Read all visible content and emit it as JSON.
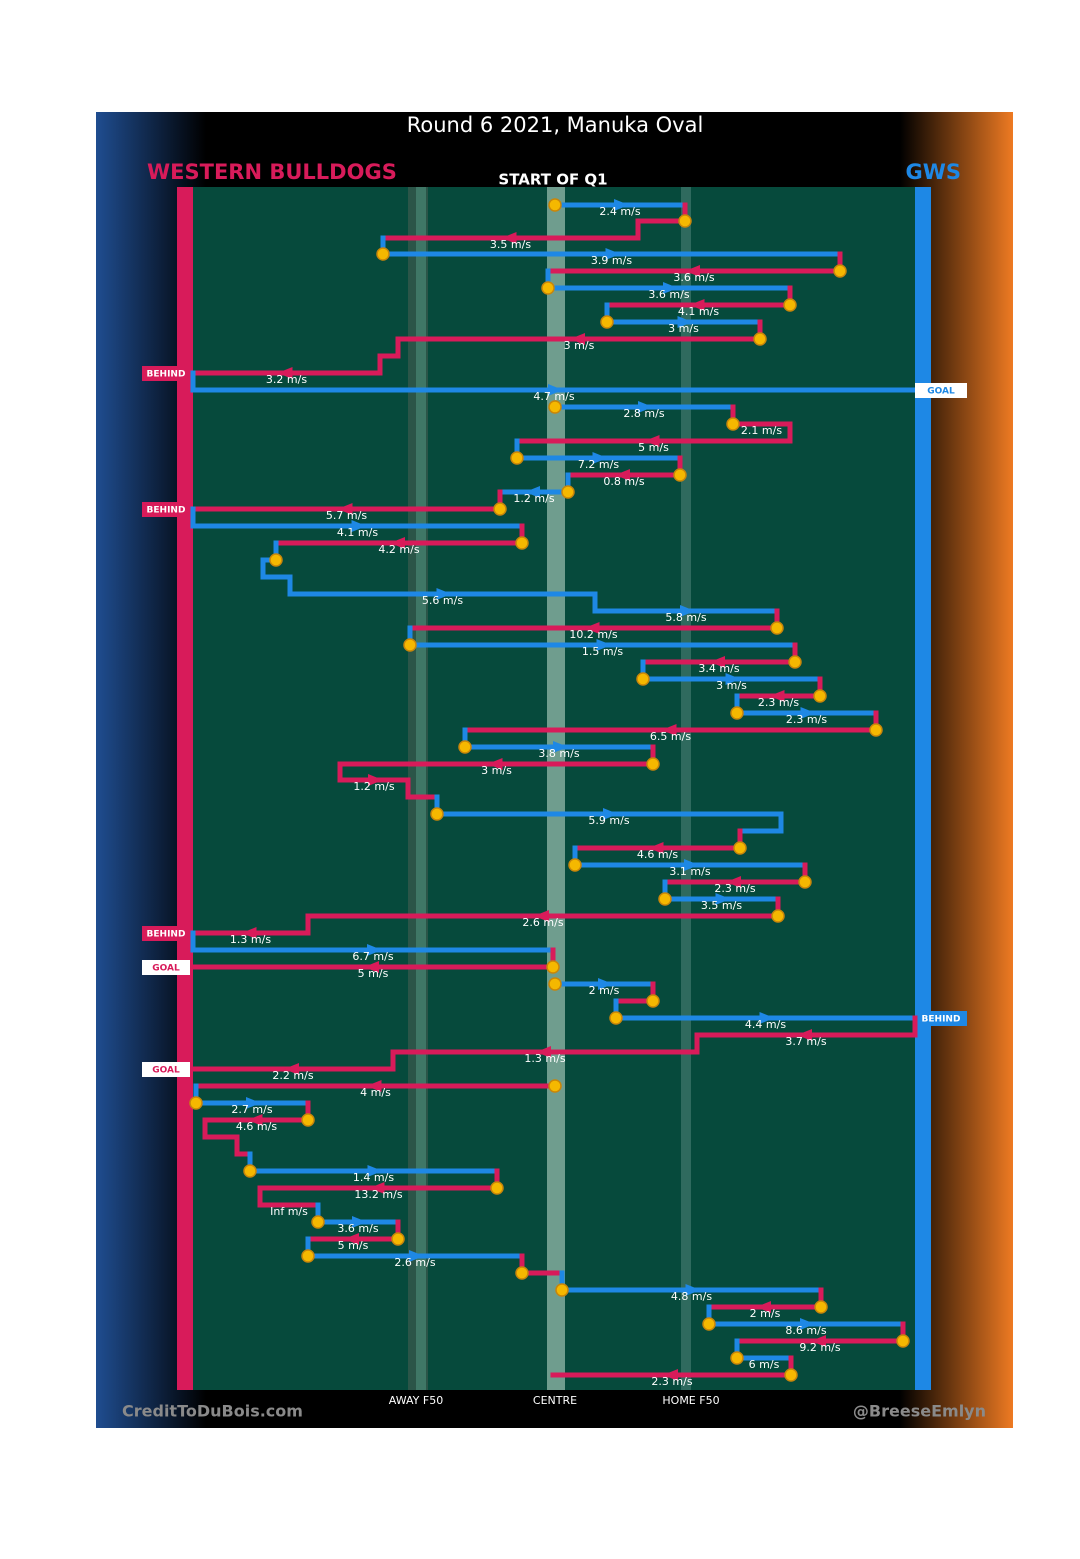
{
  "title": "Round 6 2021, Manuka Oval",
  "team_left": "WESTERN BULLDOGS",
  "team_right": "GWS",
  "start_label": "START OF Q1",
  "speeds": [
    "2.4 m/s",
    "3.5 m/s",
    "3.9 m/s",
    "3.6 m/s",
    "3.6 m/s",
    "4.1 m/s",
    "3 m/s",
    "3 m/s",
    "3.2 m/s",
    "4.7 m/s",
    "2.8 m/s",
    "2.1 m/s",
    "5 m/s",
    "7.2 m/s",
    "0.8 m/s",
    "1.2 m/s",
    "5.7 m/s",
    "4.1 m/s",
    "4.2 m/s",
    "5.6 m/s",
    "5.8 m/s",
    "10.2 m/s",
    "1.5 m/s",
    "3.4 m/s",
    "3 m/s",
    "2.3 m/s",
    "2.3 m/s",
    "6.5 m/s",
    "3.8 m/s",
    "3 m/s",
    "1.2 m/s",
    "5.9 m/s",
    "4.6 m/s",
    "3.1 m/s",
    "2.3 m/s",
    "3.5 m/s",
    "2.6 m/s",
    "1.3 m/s",
    "6.7 m/s",
    "5 m/s",
    "2 m/s",
    "4.4 m/s",
    "3.7 m/s",
    "1.3 m/s",
    "2.2 m/s",
    "4 m/s",
    "2.7 m/s",
    "4.6 m/s",
    "1.4 m/s",
    "13.2 m/s",
    "Inf m/s",
    "3.6 m/s",
    "5 m/s",
    "2.6 m/s",
    "4.8 m/s",
    "2 m/s",
    "8.6 m/s",
    "9.2 m/s",
    "6 m/s",
    "2.3 m/s"
  ],
  "outcomes": [
    "BEHIND",
    "GOAL",
    "BEHIND",
    "BEHIND",
    "GOAL",
    "BEHIND",
    "GOAL"
  ],
  "axis_labels": [
    "AWAY F50",
    "CENTRE",
    "HOME F50"
  ],
  "footer_left": "CreditToDuBois.com",
  "footer_right": "@BreeseEmlyn"
}
